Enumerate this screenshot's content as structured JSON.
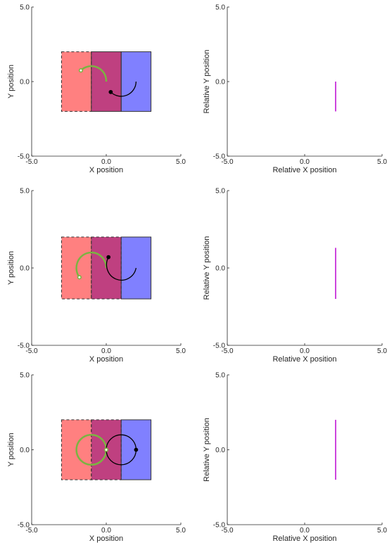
{
  "chart_data": [
    {
      "type": "line",
      "xlabel": "X position",
      "ylabel": "Y position",
      "xlim": [
        -5,
        5
      ],
      "ylim": [
        -5,
        5
      ],
      "ticks": [
        "-5.0",
        "0.0",
        "5.0"
      ],
      "grid": false,
      "regions": [
        {
          "x": [
            -3,
            -1
          ],
          "y": [
            -2,
            2
          ],
          "color": "#ff8080",
          "border": "dashed"
        },
        {
          "x": [
            -1,
            1
          ],
          "y": [
            -2,
            2
          ],
          "color": "#bf4080",
          "border": "solid"
        },
        {
          "x": [
            1,
            3
          ],
          "y": [
            -2,
            2
          ],
          "color": "#8080ff",
          "border": "solid"
        }
      ],
      "paths": [
        {
          "color": "#7cb342",
          "start": [
            -1.7,
            0.75
          ],
          "arc_start": [
            -1.7,
            0.75
          ],
          "arc_end": [
            0.0,
            0.0
          ],
          "center": [
            -1.0,
            0.0
          ],
          "radius": 1.0,
          "sweep": "cw-short"
        },
        {
          "color": "#000000",
          "start": [
            0.3,
            -0.7
          ],
          "arc_start": [
            0.3,
            -0.7
          ],
          "arc_end": [
            2.0,
            0.0
          ],
          "center": [
            1.0,
            0.0
          ],
          "radius": 1.0,
          "sweep": "ccw-short"
        }
      ]
    },
    {
      "type": "line",
      "xlabel": "Relative X position",
      "ylabel": "Relative Y position",
      "xlim": [
        -5,
        5
      ],
      "ylim": [
        -5,
        5
      ],
      "ticks": [
        "-5.0",
        "0.0",
        "5.0"
      ],
      "grid": false,
      "segments": [
        {
          "color": "#cc44dd",
          "x": [
            2,
            2
          ],
          "y": [
            0,
            -2
          ]
        }
      ]
    },
    {
      "type": "line",
      "xlabel": "X position",
      "ylabel": "Y position",
      "xlim": [
        -5,
        5
      ],
      "ylim": [
        -5,
        5
      ],
      "ticks": [
        "-5.0",
        "0.0",
        "5.0"
      ],
      "grid": false,
      "regions": [
        {
          "x": [
            -3,
            -1
          ],
          "y": [
            -2,
            2
          ],
          "color": "#ff8080",
          "border": "dashed"
        },
        {
          "x": [
            -1,
            1
          ],
          "y": [
            -2,
            2
          ],
          "color": "#bf4080",
          "border": "dashed"
        },
        {
          "x": [
            1,
            3
          ],
          "y": [
            -2,
            2
          ],
          "color": "#8080ff",
          "border": "solid"
        }
      ],
      "paths": [
        {
          "color": "#7cb342",
          "start": [
            -1.8,
            -0.6
          ],
          "arc_start": [
            -1.8,
            -0.6
          ],
          "arc_end": [
            0.0,
            0.0
          ],
          "center": [
            -1.0,
            0.0
          ],
          "radius": 1.0,
          "sweep": "cw-long"
        },
        {
          "color": "#000000",
          "start": [
            0.15,
            0.7
          ],
          "arc_start": [
            0.15,
            0.7
          ],
          "arc_end": [
            2.0,
            0.0
          ],
          "center": [
            1.0,
            0.0
          ],
          "radius": 1.0,
          "sweep": "ccw-long"
        }
      ]
    },
    {
      "type": "line",
      "xlabel": "Relative X position",
      "ylabel": "Relative Y position",
      "xlim": [
        -5,
        5
      ],
      "ylim": [
        -5,
        5
      ],
      "ticks": [
        "-5.0",
        "0.0",
        "5.0"
      ],
      "grid": false,
      "segments": [
        {
          "color": "#cc44dd",
          "x": [
            2,
            2
          ],
          "y": [
            1.3,
            -2
          ]
        }
      ]
    },
    {
      "type": "line",
      "xlabel": "X position",
      "ylabel": "Y position",
      "xlim": [
        -5,
        5
      ],
      "ylim": [
        -5,
        5
      ],
      "ticks": [
        "-5.0",
        "0.0",
        "5.0"
      ],
      "grid": false,
      "regions": [
        {
          "x": [
            -3,
            -1
          ],
          "y": [
            -2,
            2
          ],
          "color": "#ff8080",
          "border": "dashed"
        },
        {
          "x": [
            -1,
            1
          ],
          "y": [
            -2,
            2
          ],
          "color": "#bf4080",
          "border": "dashed"
        },
        {
          "x": [
            1,
            3
          ],
          "y": [
            -2,
            2
          ],
          "color": "#8080ff",
          "border": "solid"
        }
      ],
      "paths": [
        {
          "color": "#7cb342",
          "start": [
            0.0,
            0.0
          ],
          "center": [
            -1.0,
            0.0
          ],
          "radius": 1.0,
          "sweep": "full"
        },
        {
          "color": "#000000",
          "start": [
            2.0,
            0.0
          ],
          "center": [
            1.0,
            0.0
          ],
          "radius": 1.0,
          "sweep": "full"
        }
      ]
    },
    {
      "type": "line",
      "xlabel": "Relative X position",
      "ylabel": "Relative Y position",
      "xlim": [
        -5,
        5
      ],
      "ylim": [
        -5,
        5
      ],
      "ticks": [
        "-5.0",
        "0.0",
        "5.0"
      ],
      "grid": false,
      "segments": [
        {
          "color": "#cc44dd",
          "x": [
            2,
            2
          ],
          "y": [
            2,
            -2
          ]
        }
      ]
    }
  ]
}
